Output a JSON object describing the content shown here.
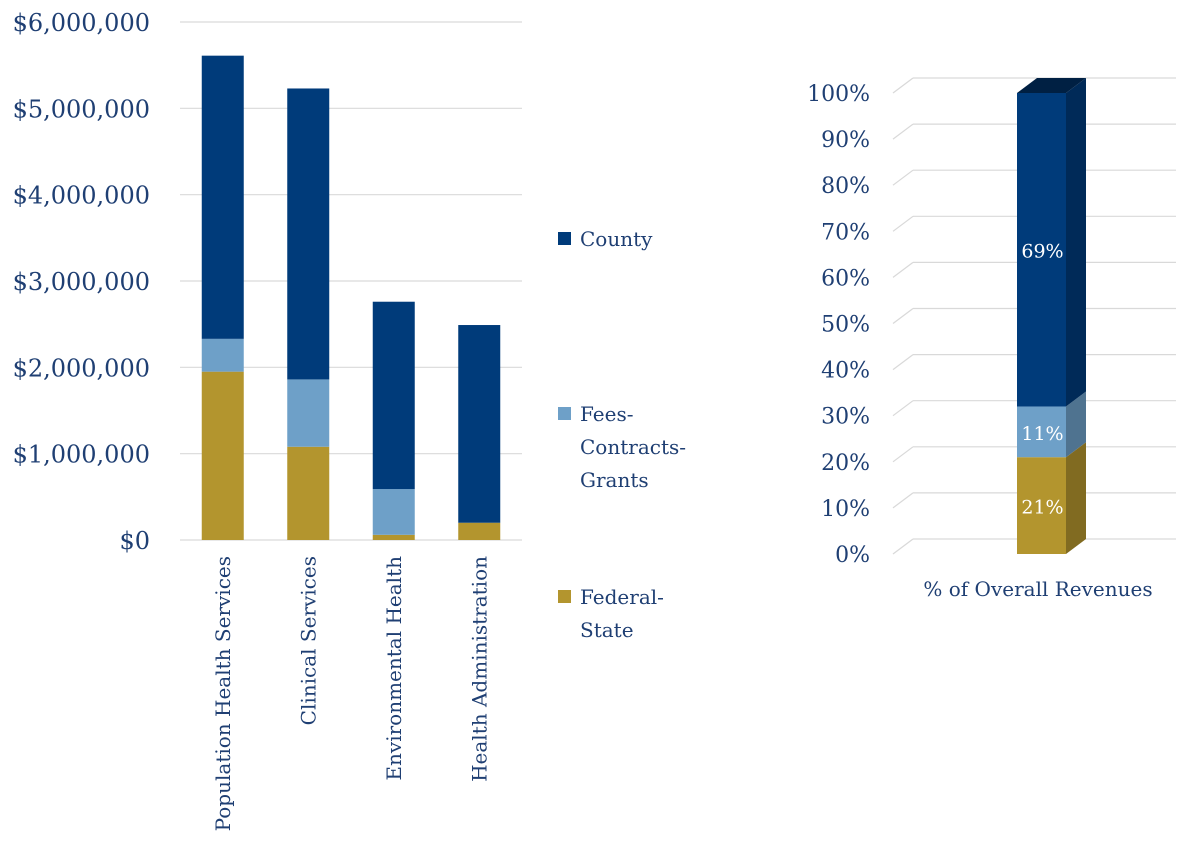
{
  "colors": {
    "county": "#003b7a",
    "fees": "#6ea0c8",
    "federal": "#b3952e",
    "text": "#1f3f73",
    "grid": "#d9d9d9"
  },
  "legend": {
    "items": [
      {
        "key": "county",
        "label_lines": [
          "County"
        ]
      },
      {
        "key": "fees",
        "label_lines": [
          "Fees-",
          "Contracts-",
          "Grants"
        ]
      },
      {
        "key": "federal",
        "label_lines": [
          "Federal-",
          "State"
        ]
      }
    ]
  },
  "chart_data": [
    {
      "type": "bar",
      "stacked": true,
      "categories": [
        "Population Health Services",
        "Clinical Services",
        "Environmental Health",
        "Health Administration"
      ],
      "series": [
        {
          "name": "Federal-State",
          "key": "federal",
          "values": [
            1950000,
            1080000,
            60000,
            200000
          ]
        },
        {
          "name": "Fees-Contracts-Grants",
          "key": "fees",
          "values": [
            380000,
            780000,
            530000,
            0
          ]
        },
        {
          "name": "County",
          "key": "county",
          "values": [
            3280000,
            3370000,
            2170000,
            2290000
          ]
        }
      ],
      "ylim": [
        0,
        6000000
      ],
      "yticks": [
        0,
        1000000,
        2000000,
        3000000,
        4000000,
        5000000,
        6000000
      ],
      "ytick_labels": [
        "$0",
        "$1,000,000",
        "$2,000,000",
        "$3,000,000",
        "$4,000,000",
        "$5,000,000",
        "$6,000,000"
      ],
      "grid": true,
      "legend_position": "right"
    },
    {
      "type": "bar",
      "stacked": true,
      "style": "3d",
      "categories": [
        "% of Overall Revenues"
      ],
      "series": [
        {
          "name": "Federal-State",
          "key": "federal",
          "values": [
            21
          ],
          "data_label": "21%"
        },
        {
          "name": "Fees-Contracts-Grants",
          "key": "fees",
          "values": [
            11
          ],
          "data_label": "11%"
        },
        {
          "name": "County",
          "key": "county",
          "values": [
            69
          ],
          "data_label": "69%"
        }
      ],
      "ylim": [
        0,
        100
      ],
      "yticks": [
        0,
        10,
        20,
        30,
        40,
        50,
        60,
        70,
        80,
        90,
        100
      ],
      "ytick_labels": [
        "0%",
        "10%",
        "20%",
        "30%",
        "40%",
        "50%",
        "60%",
        "70%",
        "80%",
        "90%",
        "100%"
      ],
      "grid": true
    }
  ]
}
